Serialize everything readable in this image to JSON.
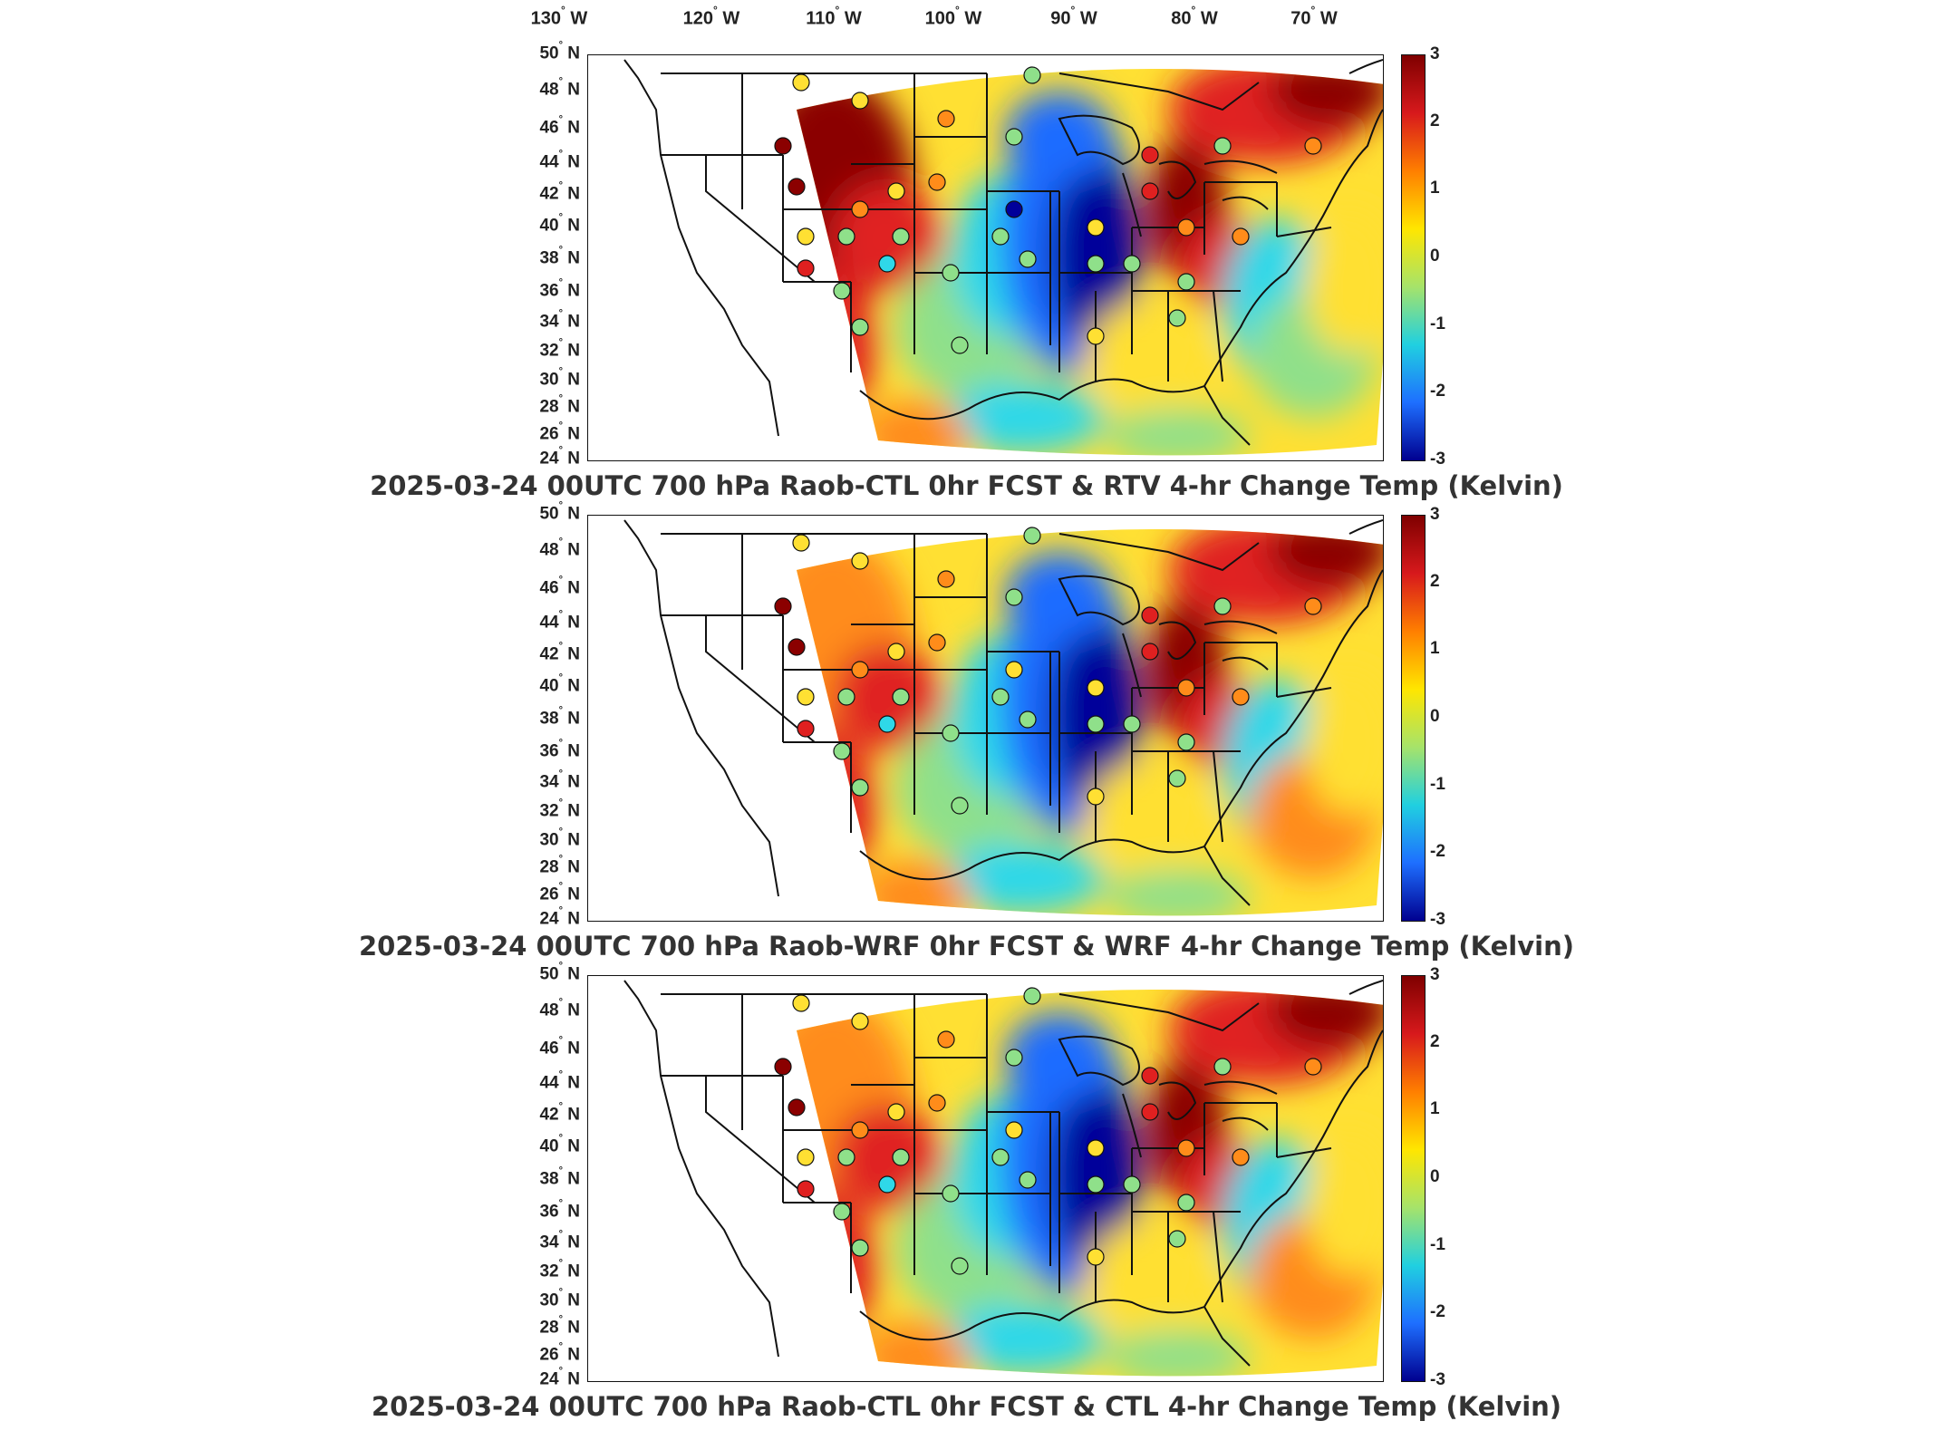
{
  "lon_labels": [
    "130",
    "120",
    "110",
    "100",
    "90",
    "80",
    "70"
  ],
  "lon_suffix": "W",
  "lat_labels": [
    "50",
    "48",
    "46",
    "44",
    "42",
    "40",
    "38",
    "36",
    "34",
    "32",
    "30",
    "28",
    "26",
    "24"
  ],
  "lat_suffix": "N",
  "degree_symbol": "°",
  "colorbar": {
    "ticks": [
      "3",
      "2",
      "1",
      "0",
      "-1",
      "-2",
      "-3"
    ],
    "range": [
      -3,
      3
    ],
    "colormap": [
      "#7f0000",
      "#d7191c",
      "#ff7f00",
      "#ffe600",
      "#a6e36a",
      "#20d0e0",
      "#1e6fff",
      "#00008f"
    ]
  },
  "panels": [
    {
      "title": "2025-03-24 00UTC 700 hPa Raob-CTL 0hr FCST & RTV 4-hr Change Temp (Kelvin)"
    },
    {
      "title": "2025-03-24 00UTC 700 hPa Raob-WRF 0hr FCST & WRF 4-hr Change Temp (Kelvin)"
    },
    {
      "title": "2025-03-24 00UTC 700 hPa Raob-CTL 0hr FCST & CTL 4-hr Change Temp (Kelvin)"
    }
  ],
  "colors": {
    "dark_red": "#8b0000",
    "red": "#e02020",
    "orange": "#ff8c1a",
    "yellow": "#ffe033",
    "green": "#8fe08a",
    "cyan": "#2fd8e8",
    "blue": "#1f6cff",
    "dark_blue": "#00009a",
    "outline": "#111111"
  }
}
